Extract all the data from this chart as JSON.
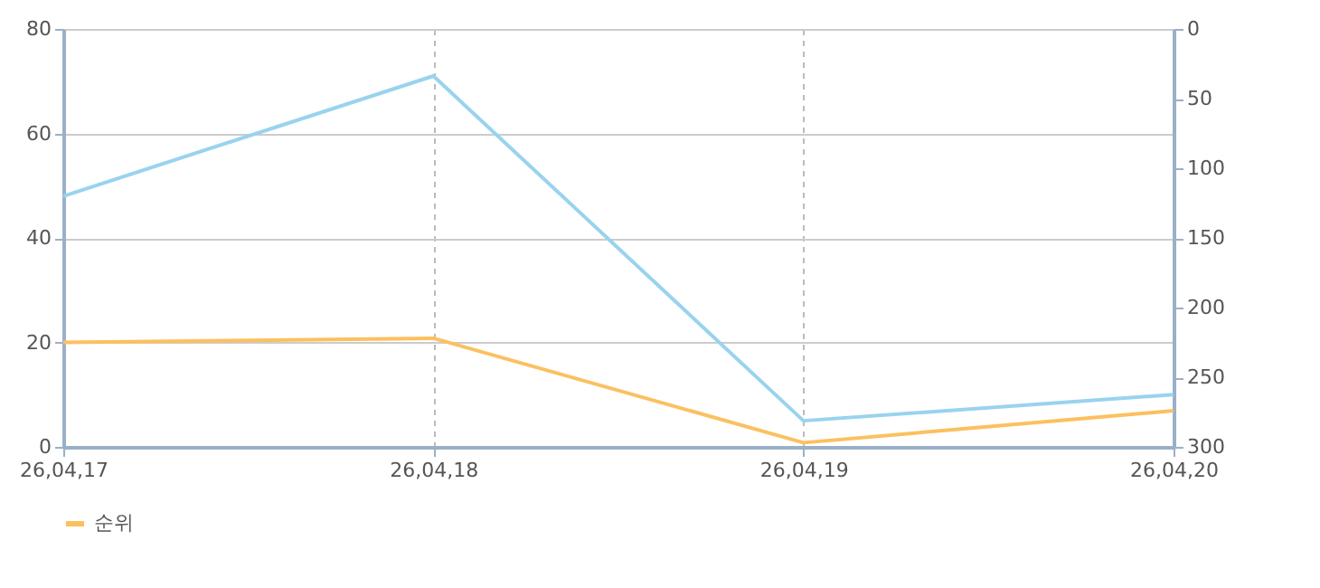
{
  "chart_data": {
    "type": "line",
    "categories": [
      "26,04,17",
      "26,04,18",
      "26,04,19",
      "26,04,20"
    ],
    "series": [
      {
        "color": "#99d3ee",
        "values": [
          48,
          71,
          5,
          10
        ]
      },
      {
        "name": "순위",
        "color": "#fbc060",
        "axis": "y2",
        "values": [
          225,
          222,
          297,
          274
        ]
      }
    ],
    "ylim": [
      0,
      80
    ],
    "yticks": [
      0,
      20,
      40,
      60,
      80
    ],
    "y2lim": [
      300,
      0
    ],
    "y2ticks": [
      0,
      50,
      100,
      150,
      200,
      250,
      300
    ],
    "grid": true,
    "legend": "bottom left",
    "marker": "none",
    "line_style": "solid"
  }
}
